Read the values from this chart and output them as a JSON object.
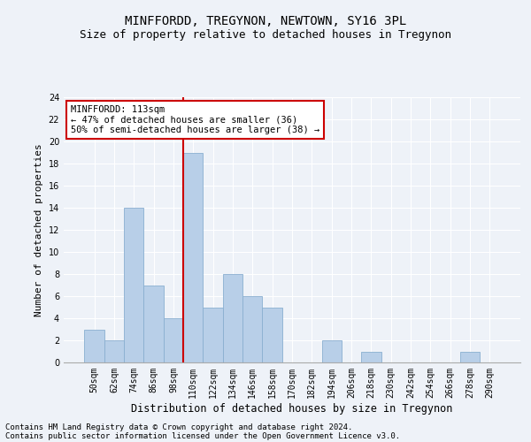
{
  "title": "MINFFORDD, TREGYNON, NEWTOWN, SY16 3PL",
  "subtitle": "Size of property relative to detached houses in Tregynon",
  "xlabel": "Distribution of detached houses by size in Tregynon",
  "ylabel": "Number of detached properties",
  "bar_color": "#b8cfe8",
  "bar_edge_color": "#8aafd0",
  "categories": [
    "50sqm",
    "62sqm",
    "74sqm",
    "86sqm",
    "98sqm",
    "110sqm",
    "122sqm",
    "134sqm",
    "146sqm",
    "158sqm",
    "170sqm",
    "182sqm",
    "194sqm",
    "206sqm",
    "218sqm",
    "230sqm",
    "242sqm",
    "254sqm",
    "266sqm",
    "278sqm",
    "290sqm"
  ],
  "values": [
    3,
    2,
    14,
    7,
    4,
    19,
    5,
    8,
    6,
    5,
    0,
    0,
    2,
    0,
    1,
    0,
    0,
    0,
    0,
    1,
    0
  ],
  "ylim": [
    0,
    24
  ],
  "yticks": [
    0,
    2,
    4,
    6,
    8,
    10,
    12,
    14,
    16,
    18,
    20,
    22,
    24
  ],
  "vline_index": 5,
  "vline_color": "#cc0000",
  "annotation_text_line1": "MINFFORDD: 113sqm",
  "annotation_text_line2": "← 47% of detached houses are smaller (36)",
  "annotation_text_line3": "50% of semi-detached houses are larger (38) →",
  "footer_line1": "Contains HM Land Registry data © Crown copyright and database right 2024.",
  "footer_line2": "Contains public sector information licensed under the Open Government Licence v3.0.",
  "background_color": "#eef2f8",
  "plot_background_color": "#eef2f8",
  "grid_color": "#ffffff",
  "title_fontsize": 10,
  "subtitle_fontsize": 9,
  "ylabel_fontsize": 8,
  "xlabel_fontsize": 8.5,
  "tick_fontsize": 7,
  "annotation_fontsize": 7.5,
  "footer_fontsize": 6.5
}
